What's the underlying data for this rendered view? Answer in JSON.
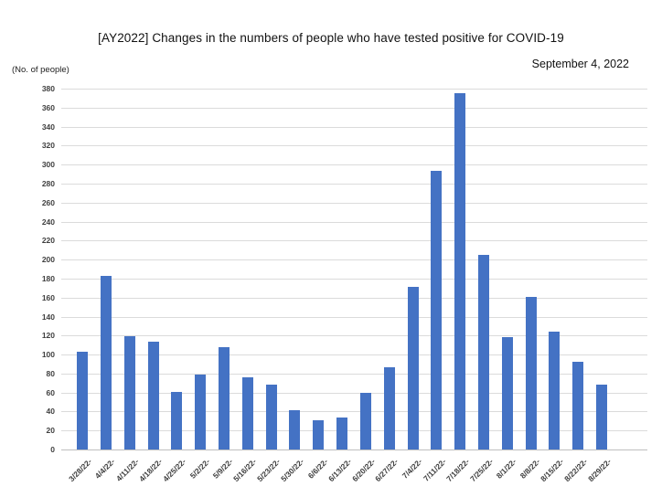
{
  "header": {
    "title": "[AY2022] Changes in the numbers of people who have tested positive for COVID-19",
    "date": "September 4, 2022"
  },
  "chart_data": {
    "type": "bar",
    "title": "[AY2022] Changes in the numbers of people who have tested positive for COVID-19",
    "subtitle": "September 4, 2022",
    "ylabel": "(No. of people)",
    "xlabel": "",
    "categories": [
      "3/28/22-",
      "4/4/22-",
      "4/11/22-",
      "4/18/22-",
      "4/25/22-",
      "5/2/22-",
      "5/9/22-",
      "5/16/22-",
      "5/23/22-",
      "5/30/22-",
      "6/6/22-",
      "6/13/22-",
      "6/20/22-",
      "6/27/22-",
      "7/4/22-",
      "7/11/22-",
      "7/18/22-",
      "7/25/22-",
      "8/1/22-",
      "8/8/22-",
      "8/15/22-",
      "8/22/22-",
      "8/29/22-"
    ],
    "values": [
      103,
      183,
      119,
      114,
      61,
      79,
      108,
      76,
      68,
      41,
      31,
      34,
      60,
      87,
      171,
      293,
      375,
      205,
      118,
      161,
      124,
      92,
      68
    ],
    "ylim": [
      0,
      380
    ],
    "ytick_step": 20,
    "grid": true,
    "legend": false,
    "colors": {
      "bar": "#4472C4",
      "gridline": "#DBDBDB",
      "axis_line": "#BFBFBF",
      "tick_label": "#3F3F3F",
      "text": "#111111",
      "background": "#FFFFFF"
    }
  }
}
